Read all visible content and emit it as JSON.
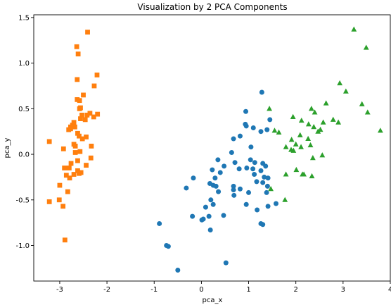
{
  "chart_data": {
    "type": "scatter",
    "title": "Visualization by 2 PCA Components",
    "xlabel": "pca_x",
    "ylabel": "pca_y",
    "xlim": [
      -3.55,
      4.0
    ],
    "ylim": [
      -1.39,
      1.53
    ],
    "xticks": [
      "-3",
      "-2",
      "-1",
      "0",
      "1",
      "2",
      "3",
      "4"
    ],
    "yticks": [
      "-1.0",
      "-0.5",
      "0.0",
      "0.5",
      "1.0",
      "1.5"
    ],
    "xtick_values": [
      -3,
      -2,
      -1,
      0,
      1,
      2,
      3,
      4
    ],
    "ytick_values": [
      -1.0,
      -0.5,
      0.0,
      0.5,
      1.0,
      1.5
    ],
    "grid": false,
    "series": [
      {
        "color": "#ff7f0e",
        "marker": "square",
        "points": [
          [
            -2.41,
            1.34
          ],
          [
            -2.64,
            1.18
          ],
          [
            -2.61,
            1.1
          ],
          [
            -2.21,
            0.87
          ],
          [
            -2.27,
            0.75
          ],
          [
            -2.63,
            0.82
          ],
          [
            -2.5,
            0.65
          ],
          [
            -2.58,
            0.59
          ],
          [
            -2.63,
            0.6
          ],
          [
            -2.56,
            0.51
          ],
          [
            -2.58,
            0.5
          ],
          [
            -2.36,
            0.45
          ],
          [
            -2.42,
            0.43
          ],
          [
            -2.53,
            0.43
          ],
          [
            -2.28,
            0.41
          ],
          [
            -2.56,
            0.39
          ],
          [
            -2.7,
            0.35
          ],
          [
            -2.2,
            0.44
          ],
          [
            -2.46,
            0.38
          ],
          [
            -2.73,
            0.32
          ],
          [
            -2.68,
            0.3
          ],
          [
            -2.77,
            0.3
          ],
          [
            -2.81,
            0.27
          ],
          [
            -2.77,
            0.28
          ],
          [
            -2.44,
            0.19
          ],
          [
            -2.59,
            0.2
          ],
          [
            -2.62,
            0.23
          ],
          [
            -2.52,
            0.17
          ],
          [
            -2.33,
            0.09
          ],
          [
            -2.67,
            0.09
          ],
          [
            -2.7,
            0.11
          ],
          [
            -3.22,
            0.14
          ],
          [
            -2.92,
            0.06
          ],
          [
            -2.57,
            0.03
          ],
          [
            -2.67,
            0.02
          ],
          [
            -2.34,
            -0.04
          ],
          [
            -2.44,
            -0.12
          ],
          [
            -2.62,
            -0.07
          ],
          [
            -2.76,
            -0.1
          ],
          [
            -2.9,
            -0.15
          ],
          [
            -2.8,
            -0.15
          ],
          [
            -2.62,
            -0.18
          ],
          [
            -2.55,
            -0.2
          ],
          [
            -2.7,
            -0.22
          ],
          [
            -2.86,
            -0.23
          ],
          [
            -2.79,
            -0.26
          ],
          [
            -2.59,
            -0.21
          ],
          [
            -3.0,
            -0.34
          ],
          [
            -2.83,
            -0.41
          ],
          [
            -3.01,
            -0.5
          ],
          [
            -3.22,
            -0.52
          ],
          [
            -2.93,
            -0.57
          ],
          [
            -2.89,
            -0.94
          ]
        ]
      },
      {
        "color": "#1f77b4",
        "marker": "circle",
        "points": [
          [
            1.28,
            0.68
          ],
          [
            0.94,
            0.47
          ],
          [
            1.45,
            0.38
          ],
          [
            0.93,
            0.33
          ],
          [
            0.95,
            0.31
          ],
          [
            1.26,
            0.25
          ],
          [
            1.1,
            0.29
          ],
          [
            0.82,
            0.2
          ],
          [
            1.39,
            0.27
          ],
          [
            0.68,
            0.17
          ],
          [
            1.05,
            0.08
          ],
          [
            0.64,
            0.02
          ],
          [
            0.35,
            -0.06
          ],
          [
            0.71,
            -0.09
          ],
          [
            0.48,
            -0.13
          ],
          [
            1.04,
            -0.06
          ],
          [
            1.13,
            -0.09
          ],
          [
            1.3,
            -0.1
          ],
          [
            1.36,
            -0.13
          ],
          [
            0.96,
            -0.15
          ],
          [
            1.09,
            -0.16
          ],
          [
            1.26,
            -0.18
          ],
          [
            0.8,
            -0.16
          ],
          [
            1.12,
            -0.22
          ],
          [
            0.23,
            -0.17
          ],
          [
            0.29,
            -0.26
          ],
          [
            0.4,
            -0.2
          ],
          [
            1.33,
            -0.25
          ],
          [
            1.41,
            -0.26
          ],
          [
            0.18,
            -0.32
          ],
          [
            0.25,
            -0.34
          ],
          [
            0.31,
            -0.35
          ],
          [
            1.17,
            -0.3
          ],
          [
            1.3,
            -0.31
          ],
          [
            0.68,
            -0.35
          ],
          [
            0.68,
            -0.39
          ],
          [
            1.4,
            -0.35
          ],
          [
            0.82,
            -0.38
          ],
          [
            1.0,
            -0.42
          ],
          [
            -0.32,
            -0.37
          ],
          [
            -0.17,
            -0.26
          ],
          [
            0.36,
            -0.41
          ],
          [
            0.2,
            -0.5
          ],
          [
            0.09,
            -0.58
          ],
          [
            0.69,
            -0.45
          ],
          [
            1.38,
            -0.42
          ],
          [
            0.25,
            -0.55
          ],
          [
            1.58,
            -0.54
          ],
          [
            0.95,
            -0.55
          ],
          [
            1.41,
            -0.57
          ],
          [
            1.18,
            -0.61
          ],
          [
            0.47,
            -0.67
          ],
          [
            0.04,
            -0.71
          ],
          [
            0.16,
            -0.68
          ],
          [
            -0.19,
            -0.68
          ],
          [
            0.01,
            -0.72
          ],
          [
            1.26,
            -0.76
          ],
          [
            1.3,
            -0.77
          ],
          [
            0.19,
            -0.83
          ],
          [
            -0.89,
            -0.76
          ],
          [
            -0.74,
            -1.0
          ],
          [
            -0.7,
            -1.01
          ],
          [
            0.52,
            -1.19
          ],
          [
            -0.5,
            -1.27
          ]
        ]
      },
      {
        "color": "#2ca02c",
        "marker": "triangle",
        "points": [
          [
            3.23,
            1.37
          ],
          [
            3.49,
            1.17
          ],
          [
            2.93,
            0.78
          ],
          [
            3.06,
            0.69
          ],
          [
            3.4,
            0.55
          ],
          [
            3.52,
            0.46
          ],
          [
            2.64,
            0.56
          ],
          [
            2.33,
            0.5
          ],
          [
            1.44,
            0.5
          ],
          [
            1.94,
            0.41
          ],
          [
            2.4,
            0.46
          ],
          [
            2.12,
            0.37
          ],
          [
            2.79,
            0.38
          ],
          [
            2.9,
            0.35
          ],
          [
            2.58,
            0.35
          ],
          [
            2.27,
            0.33
          ],
          [
            2.38,
            0.3
          ],
          [
            2.52,
            0.27
          ],
          [
            1.55,
            0.26
          ],
          [
            1.64,
            0.24
          ],
          [
            2.09,
            0.21
          ],
          [
            2.47,
            0.25
          ],
          [
            3.79,
            0.26
          ],
          [
            2.26,
            0.17
          ],
          [
            1.91,
            0.16
          ],
          [
            2.0,
            0.11
          ],
          [
            2.11,
            0.08
          ],
          [
            1.79,
            0.08
          ],
          [
            2.31,
            0.1
          ],
          [
            1.9,
            0.05
          ],
          [
            1.95,
            0.04
          ],
          [
            2.36,
            -0.04
          ],
          [
            2.56,
            -0.01
          ],
          [
            2.01,
            -0.17
          ],
          [
            2.14,
            -0.22
          ],
          [
            1.79,
            -0.22
          ],
          [
            2.17,
            -0.22
          ],
          [
            2.34,
            -0.24
          ],
          [
            1.47,
            -0.38
          ],
          [
            1.77,
            -0.5
          ]
        ]
      }
    ]
  }
}
